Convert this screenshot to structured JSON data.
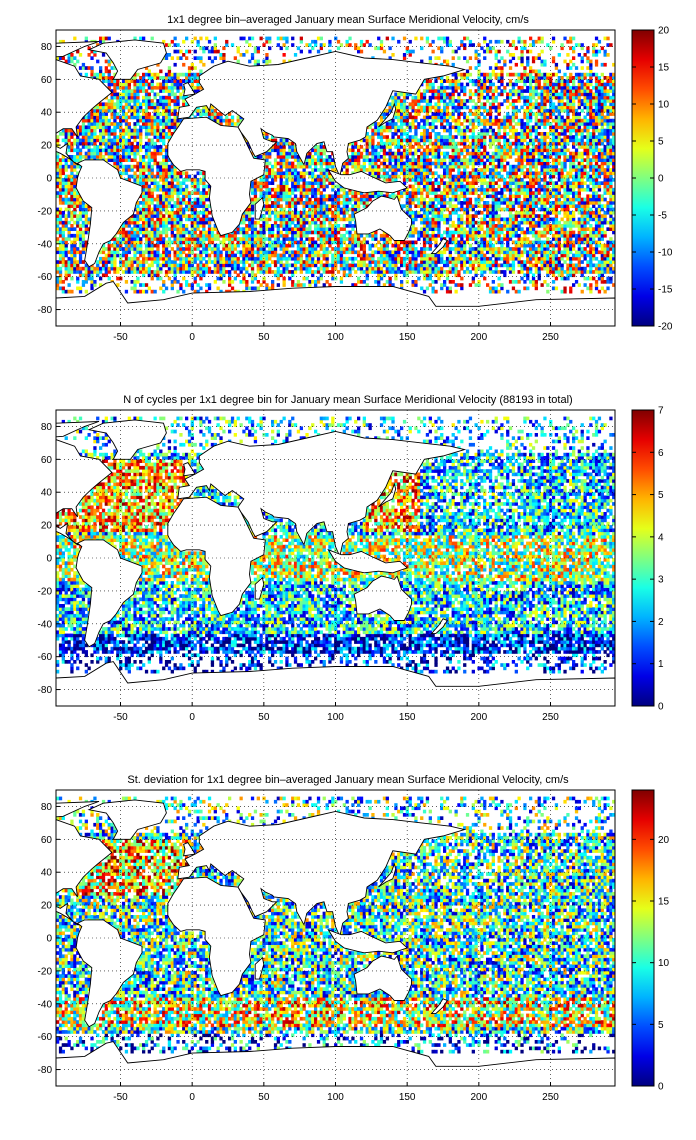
{
  "charts": [
    {
      "title": "1x1 degree bin–averaged January mean Surface Meridional Velocity, cm/s",
      "cbar_ticks": [
        "20",
        "15",
        "10",
        "5",
        "0",
        "-5",
        "-10",
        "-15",
        "-20"
      ]
    },
    {
      "title": "N of cycles per 1x1 degree bin for January mean Surface Meridional Velocity (88193 in total)",
      "cbar_ticks": [
        "7",
        "6",
        "5",
        "4",
        "3",
        "2",
        "1",
        "0"
      ]
    },
    {
      "title": "St. deviation for 1x1 degree bin–averaged January mean Surface Meridional Velocity, cm/s",
      "cbar_ticks": [
        "20",
        "15",
        "10",
        "5",
        "0"
      ]
    }
  ],
  "axes": {
    "x_ticks": [
      "-50",
      "0",
      "50",
      "100",
      "150",
      "200",
      "250"
    ],
    "y_ticks": [
      "80",
      "60",
      "40",
      "20",
      "0",
      "-20",
      "-40",
      "-60",
      "-80"
    ]
  },
  "chart_data": [
    {
      "type": "heatmap",
      "title": "1x1 degree bin–averaged January mean Surface Meridional Velocity, cm/s",
      "xlim": [
        -95,
        295
      ],
      "ylim": [
        -90,
        90
      ],
      "x_ticks": [
        -50,
        0,
        50,
        100,
        150,
        200,
        250
      ],
      "y_ticks": [
        -80,
        -60,
        -40,
        -20,
        0,
        20,
        40,
        60,
        80
      ],
      "colorbar": {
        "min": -20,
        "max": 20,
        "ticks": [
          -20,
          -15,
          -10,
          -5,
          0,
          5,
          10,
          15,
          20
        ],
        "colormap": "jet"
      },
      "grid": true
    },
    {
      "type": "heatmap",
      "title": "N of cycles per 1x1 degree bin for January mean Surface Meridional Velocity (88193 in total)",
      "xlim": [
        -95,
        295
      ],
      "ylim": [
        -90,
        90
      ],
      "x_ticks": [
        -50,
        0,
        50,
        100,
        150,
        200,
        250
      ],
      "y_ticks": [
        -80,
        -60,
        -40,
        -20,
        0,
        20,
        40,
        60,
        80
      ],
      "colorbar": {
        "min": 0,
        "max": 7,
        "ticks": [
          0,
          1,
          2,
          3,
          4,
          5,
          6,
          7
        ],
        "colormap": "jet"
      },
      "grid": true
    },
    {
      "type": "heatmap",
      "title": "St. deviation for 1x1 degree bin–averaged January mean Surface Meridional Velocity, cm/s",
      "xlim": [
        -95,
        295
      ],
      "ylim": [
        -90,
        90
      ],
      "x_ticks": [
        -50,
        0,
        50,
        100,
        150,
        200,
        250
      ],
      "y_ticks": [
        -80,
        -60,
        -40,
        -20,
        0,
        20,
        40,
        60,
        80
      ],
      "colorbar": {
        "min": 0,
        "max": 24,
        "ticks": [
          0,
          5,
          10,
          15,
          20
        ],
        "colormap": "jet"
      },
      "grid": true
    }
  ]
}
